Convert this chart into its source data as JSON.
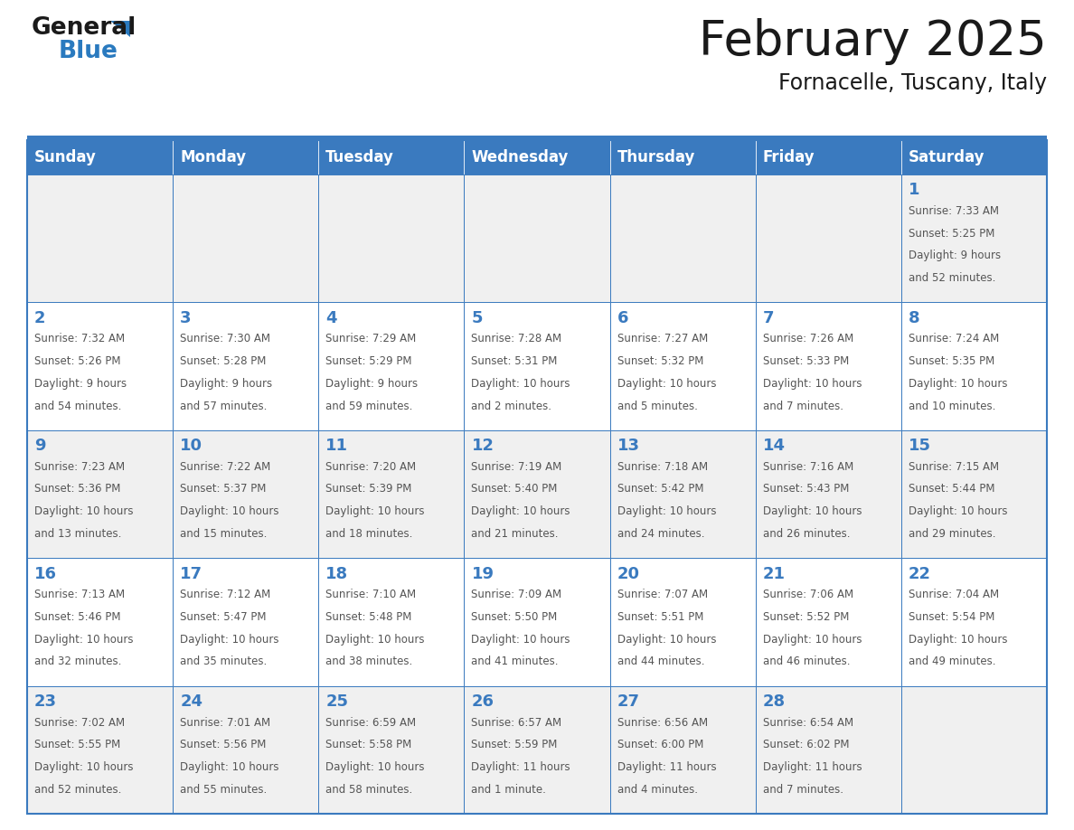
{
  "title": "February 2025",
  "subtitle": "Fornacelle, Tuscany, Italy",
  "header_bg": "#3a7abf",
  "header_text_color": "#ffffff",
  "cell_bg_white": "#ffffff",
  "cell_bg_gray": "#f0f0f0",
  "day_number_color": "#3a7abf",
  "info_text_color": "#555555",
  "border_color": "#3a7abf",
  "days_of_week": [
    "Sunday",
    "Monday",
    "Tuesday",
    "Wednesday",
    "Thursday",
    "Friday",
    "Saturday"
  ],
  "weeks": [
    [
      {
        "day": null,
        "info": null
      },
      {
        "day": null,
        "info": null
      },
      {
        "day": null,
        "info": null
      },
      {
        "day": null,
        "info": null
      },
      {
        "day": null,
        "info": null
      },
      {
        "day": null,
        "info": null
      },
      {
        "day": "1",
        "info": "Sunrise: 7:33 AM\nSunset: 5:25 PM\nDaylight: 9 hours\nand 52 minutes."
      }
    ],
    [
      {
        "day": "2",
        "info": "Sunrise: 7:32 AM\nSunset: 5:26 PM\nDaylight: 9 hours\nand 54 minutes."
      },
      {
        "day": "3",
        "info": "Sunrise: 7:30 AM\nSunset: 5:28 PM\nDaylight: 9 hours\nand 57 minutes."
      },
      {
        "day": "4",
        "info": "Sunrise: 7:29 AM\nSunset: 5:29 PM\nDaylight: 9 hours\nand 59 minutes."
      },
      {
        "day": "5",
        "info": "Sunrise: 7:28 AM\nSunset: 5:31 PM\nDaylight: 10 hours\nand 2 minutes."
      },
      {
        "day": "6",
        "info": "Sunrise: 7:27 AM\nSunset: 5:32 PM\nDaylight: 10 hours\nand 5 minutes."
      },
      {
        "day": "7",
        "info": "Sunrise: 7:26 AM\nSunset: 5:33 PM\nDaylight: 10 hours\nand 7 minutes."
      },
      {
        "day": "8",
        "info": "Sunrise: 7:24 AM\nSunset: 5:35 PM\nDaylight: 10 hours\nand 10 minutes."
      }
    ],
    [
      {
        "day": "9",
        "info": "Sunrise: 7:23 AM\nSunset: 5:36 PM\nDaylight: 10 hours\nand 13 minutes."
      },
      {
        "day": "10",
        "info": "Sunrise: 7:22 AM\nSunset: 5:37 PM\nDaylight: 10 hours\nand 15 minutes."
      },
      {
        "day": "11",
        "info": "Sunrise: 7:20 AM\nSunset: 5:39 PM\nDaylight: 10 hours\nand 18 minutes."
      },
      {
        "day": "12",
        "info": "Sunrise: 7:19 AM\nSunset: 5:40 PM\nDaylight: 10 hours\nand 21 minutes."
      },
      {
        "day": "13",
        "info": "Sunrise: 7:18 AM\nSunset: 5:42 PM\nDaylight: 10 hours\nand 24 minutes."
      },
      {
        "day": "14",
        "info": "Sunrise: 7:16 AM\nSunset: 5:43 PM\nDaylight: 10 hours\nand 26 minutes."
      },
      {
        "day": "15",
        "info": "Sunrise: 7:15 AM\nSunset: 5:44 PM\nDaylight: 10 hours\nand 29 minutes."
      }
    ],
    [
      {
        "day": "16",
        "info": "Sunrise: 7:13 AM\nSunset: 5:46 PM\nDaylight: 10 hours\nand 32 minutes."
      },
      {
        "day": "17",
        "info": "Sunrise: 7:12 AM\nSunset: 5:47 PM\nDaylight: 10 hours\nand 35 minutes."
      },
      {
        "day": "18",
        "info": "Sunrise: 7:10 AM\nSunset: 5:48 PM\nDaylight: 10 hours\nand 38 minutes."
      },
      {
        "day": "19",
        "info": "Sunrise: 7:09 AM\nSunset: 5:50 PM\nDaylight: 10 hours\nand 41 minutes."
      },
      {
        "day": "20",
        "info": "Sunrise: 7:07 AM\nSunset: 5:51 PM\nDaylight: 10 hours\nand 44 minutes."
      },
      {
        "day": "21",
        "info": "Sunrise: 7:06 AM\nSunset: 5:52 PM\nDaylight: 10 hours\nand 46 minutes."
      },
      {
        "day": "22",
        "info": "Sunrise: 7:04 AM\nSunset: 5:54 PM\nDaylight: 10 hours\nand 49 minutes."
      }
    ],
    [
      {
        "day": "23",
        "info": "Sunrise: 7:02 AM\nSunset: 5:55 PM\nDaylight: 10 hours\nand 52 minutes."
      },
      {
        "day": "24",
        "info": "Sunrise: 7:01 AM\nSunset: 5:56 PM\nDaylight: 10 hours\nand 55 minutes."
      },
      {
        "day": "25",
        "info": "Sunrise: 6:59 AM\nSunset: 5:58 PM\nDaylight: 10 hours\nand 58 minutes."
      },
      {
        "day": "26",
        "info": "Sunrise: 6:57 AM\nSunset: 5:59 PM\nDaylight: 11 hours\nand 1 minute."
      },
      {
        "day": "27",
        "info": "Sunrise: 6:56 AM\nSunset: 6:00 PM\nDaylight: 11 hours\nand 4 minutes."
      },
      {
        "day": "28",
        "info": "Sunrise: 6:54 AM\nSunset: 6:02 PM\nDaylight: 11 hours\nand 7 minutes."
      },
      {
        "day": null,
        "info": null
      }
    ]
  ],
  "logo_general_color": "#1a1a1a",
  "logo_blue_color": "#2a7abf",
  "title_color": "#1a1a1a",
  "subtitle_color": "#1a1a1a"
}
